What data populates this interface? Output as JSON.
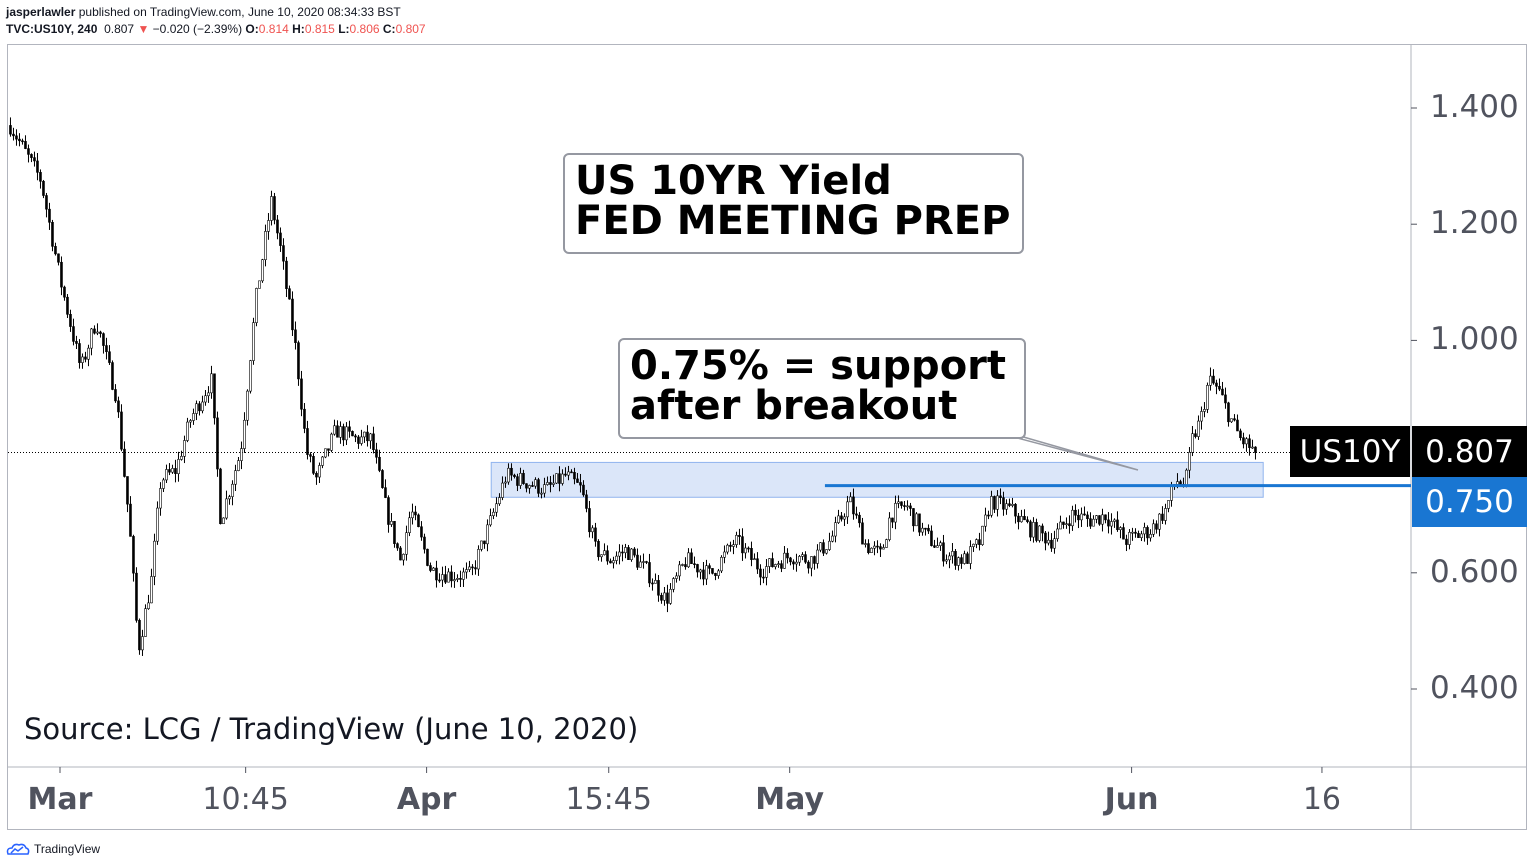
{
  "header": {
    "line1_user": "jasperlawler",
    "line1_rest": "published on TradingView.com, June 10, 2020 08:34:33 BST",
    "symbol": "TVC:US10Y, 240",
    "last": "0.807",
    "change": "−0.020 (−2.39%)",
    "o_label": "O:",
    "o": "0.814",
    "h_label": "H:",
    "h": "0.815",
    "l_label": "L:",
    "l": "0.806",
    "c_label": "C:",
    "c": "0.807"
  },
  "annotations": {
    "title_line1": "US 10YR Yield",
    "title_line2": "FED MEETING PREP",
    "support_line1": "0.75% = support",
    "support_line2": "after breakout",
    "source": "Source: LCG / TradingView (June 10, 2020)"
  },
  "tags": {
    "symbol": "US10Y",
    "last": "0.807",
    "level": "0.750"
  },
  "footer": {
    "brand": "TradingView"
  },
  "colors": {
    "accent": "#1976d2",
    "zone": "#dbe6f9",
    "candle": "#000000"
  },
  "chart_data": {
    "type": "candlestick",
    "title": "US 10YR Yield",
    "ylim": [
      0.25,
      1.5
    ],
    "y_ticks": [
      "1.400",
      "1.200",
      "1.000",
      "0.600",
      "0.400"
    ],
    "y_tick_values": [
      1.4,
      1.2,
      1.0,
      0.6,
      0.4
    ],
    "x_ticks": [
      {
        "label": "Mar",
        "day": 0
      },
      {
        "label": "10:45",
        "day": 15.8
      },
      {
        "label": "Apr",
        "day": 31.2
      },
      {
        "label": "15:45",
        "day": 46.7
      },
      {
        "label": "May",
        "day": 62.1
      },
      {
        "label": "Jun",
        "day": 91.2
      },
      {
        "label": "16",
        "day": 107.4
      }
    ],
    "x_unit": "days since Mar 1, 2020",
    "last_price": 0.807,
    "support_level": 0.75,
    "support_zone": [
      0.73,
      0.79
    ],
    "support_zone_days": [
      36.7,
      102.4
    ],
    "support_line_days": [
      65.1,
      110
    ],
    "close_path": [
      [
        -4.3,
        1.37
      ],
      [
        -1.7,
        1.276
      ],
      [
        0,
        1.1
      ],
      [
        1.7,
        0.95
      ],
      [
        3,
        1.035
      ],
      [
        4.7,
        0.906
      ],
      [
        5.1,
        0.83
      ],
      [
        5.8,
        0.69
      ],
      [
        6.6,
        0.467
      ],
      [
        7.7,
        0.588
      ],
      [
        8.5,
        0.76
      ],
      [
        9.8,
        0.777
      ],
      [
        11,
        0.863
      ],
      [
        12.8,
        0.932
      ],
      [
        13.6,
        0.69
      ],
      [
        15.3,
        0.81
      ],
      [
        16.6,
        1.07
      ],
      [
        17.9,
        1.24
      ],
      [
        18.7,
        1.156
      ],
      [
        20,
        0.983
      ],
      [
        20.9,
        0.81
      ],
      [
        21.7,
        0.76
      ],
      [
        23.4,
        0.846
      ],
      [
        25.1,
        0.83
      ],
      [
        26.4,
        0.83
      ],
      [
        27.7,
        0.708
      ],
      [
        28.9,
        0.622
      ],
      [
        29.8,
        0.708
      ],
      [
        31.5,
        0.605
      ],
      [
        33.2,
        0.596
      ],
      [
        34.9,
        0.596
      ],
      [
        36.6,
        0.69
      ],
      [
        37.9,
        0.768
      ],
      [
        39.1,
        0.76
      ],
      [
        41.3,
        0.743
      ],
      [
        43,
        0.768
      ],
      [
        44.3,
        0.743
      ],
      [
        45.5,
        0.64
      ],
      [
        46.8,
        0.622
      ],
      [
        48.1,
        0.64
      ],
      [
        49.8,
        0.605
      ],
      [
        51.5,
        0.553
      ],
      [
        53.2,
        0.622
      ],
      [
        55.3,
        0.596
      ],
      [
        57.4,
        0.656
      ],
      [
        59.6,
        0.605
      ],
      [
        62.1,
        0.63
      ],
      [
        63.8,
        0.622
      ],
      [
        65.5,
        0.656
      ],
      [
        67.1,
        0.725
      ],
      [
        68.5,
        0.648
      ],
      [
        69.8,
        0.63
      ],
      [
        70.6,
        0.7
      ],
      [
        71.9,
        0.717
      ],
      [
        73.2,
        0.674
      ],
      [
        75.3,
        0.63
      ],
      [
        77,
        0.622
      ],
      [
        78.3,
        0.656
      ],
      [
        79.1,
        0.725
      ],
      [
        80.9,
        0.708
      ],
      [
        82.6,
        0.674
      ],
      [
        84.3,
        0.656
      ],
      [
        86,
        0.7
      ],
      [
        87.7,
        0.69
      ],
      [
        88.9,
        0.7
      ],
      [
        90.6,
        0.656
      ],
      [
        92.8,
        0.674
      ],
      [
        94,
        0.708
      ],
      [
        94.9,
        0.76
      ],
      [
        95.7,
        0.751
      ],
      [
        96.3,
        0.83
      ],
      [
        97,
        0.863
      ],
      [
        97.7,
        0.932
      ],
      [
        98.5,
        0.915
      ],
      [
        99.6,
        0.863
      ],
      [
        100.4,
        0.83
      ],
      [
        101.7,
        0.807
      ]
    ]
  }
}
